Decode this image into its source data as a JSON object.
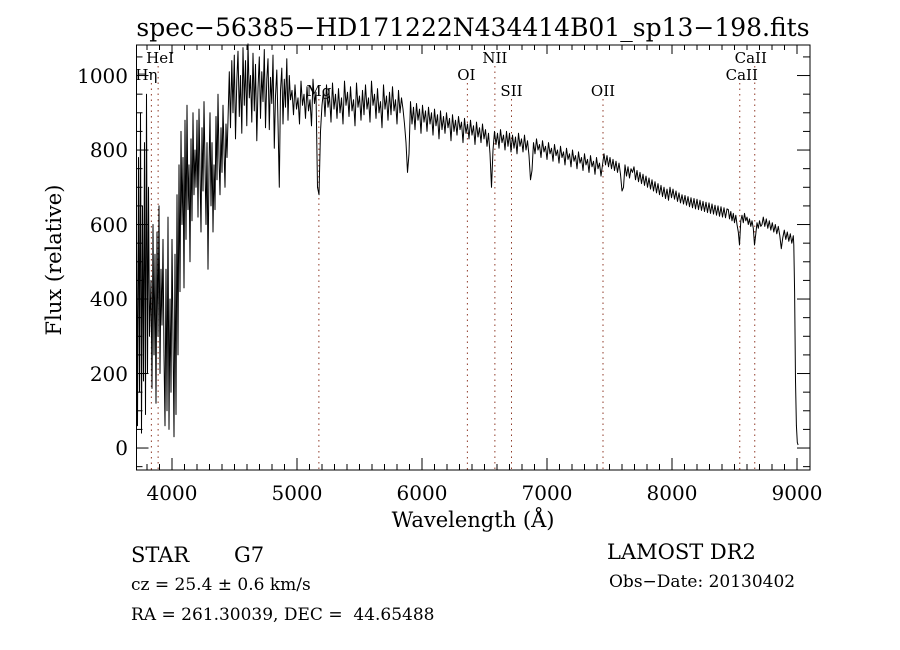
{
  "title": "spec−56385−HD171222N434414B01_sp13−198.fits",
  "footer": {
    "class_label": "STAR",
    "subclass": "G7",
    "cz_line": "cz = 25.4 ± 0.6 km/s",
    "radec_line": "RA = 261.30039, DEC =  44.65488",
    "survey": "LAMOST DR2",
    "obs_date": "Obs−Date: 20130402"
  },
  "chart_data": {
    "type": "line",
    "title": "spec−56385−HD171222N434414B01_sp13−198.fits",
    "xlabel": "Wavelength (Å)",
    "ylabel": "Flux (relative)",
    "xlim": [
      3716,
      9104
    ],
    "ylim": [
      -59,
      1082
    ],
    "xticks": [
      4000,
      5000,
      6000,
      7000,
      8000,
      9000
    ],
    "xminor_step": 100,
    "yticks": [
      0,
      200,
      400,
      600,
      800,
      1000
    ],
    "yminor_step": 50,
    "grid": false,
    "line_color": "#000000",
    "marker_line_color": "#8f3a28",
    "line_markers": [
      {
        "label": "HeI",
        "wavelength": 3889,
        "row": 1,
        "dx": 2
      },
      {
        "label": "Hη",
        "wavelength": 3835,
        "row": 2,
        "dx": -5
      },
      {
        "label": "Mg",
        "wavelength": 5175,
        "row": 3,
        "dx": 0
      },
      {
        "label": "OI",
        "wavelength": 6363,
        "row": 2,
        "dx": -1
      },
      {
        "label": "NII",
        "wavelength": 6583,
        "row": 1,
        "dx": 0
      },
      {
        "label": "SII",
        "wavelength": 6716,
        "row": 3,
        "dx": 0
      },
      {
        "label": "OII",
        "wavelength": 7448,
        "row": 3,
        "dx": 0
      },
      {
        "label": "CaII",
        "wavelength": 8542,
        "row": 2,
        "dx": 2
      },
      {
        "label": "CaII",
        "wavelength": 8662,
        "row": 1,
        "dx": -4
      }
    ],
    "spectrum_segments": [
      {
        "lambda_start": 3716,
        "lambda_step": 8,
        "flux": [
          560,
          60,
          780,
          150,
          900,
          40,
          650,
          180,
          820,
          90,
          950,
          200,
          700,
          300
        ]
      },
      {
        "lambda_start": 3832,
        "lambda_step": 8,
        "flux": [
          450,
          160,
          600,
          250,
          520,
          120,
          580,
          300,
          650,
          200,
          480,
          330,
          560
        ]
      },
      {
        "lambda_start": 3936,
        "lambda_step": 8,
        "flux": [
          250,
          60,
          480,
          100,
          620,
          50,
          400,
          150,
          560
        ]
      },
      {
        "lambda_start": 4008,
        "lambda_step": 8,
        "flux": [
          300,
          30,
          520,
          90,
          680,
          250,
          760,
          420,
          850,
          600,
          780,
          430,
          880,
          560,
          920,
          640,
          760,
          500,
          830,
          610,
          900,
          680,
          800
        ]
      },
      {
        "lambda_start": 4192,
        "lambda_step": 8,
        "flux": [
          700,
          880,
          620,
          910,
          740,
          580,
          860,
          690,
          930,
          760,
          600,
          820,
          480,
          750,
          900,
          650,
          820,
          580,
          760,
          640,
          890,
          720,
          950,
          780,
          680,
          860,
          740,
          920,
          800,
          700,
          870,
          780
        ]
      },
      {
        "lambda_start": 4448,
        "lambda_step": 10,
        "flux": [
          880,
          1010,
          860,
          1040,
          900,
          1055,
          830,
          985,
          1065,
          890,
          1000,
          845,
          1075,
          920,
          1040,
          865,
          1085,
          940,
          1000,
          875,
          1060,
          905,
          1030,
          825,
          965,
          1050,
          885,
          1010,
          930,
          1070,
          860,
          990,
          1045,
          855,
          995,
          925,
          1055,
          805,
          945,
          1015,
          875,
          700,
          960,
          1020,
          870,
          990,
          915,
          1045,
          880,
          1000,
          935
        ]
      },
      {
        "lambda_start": 4960,
        "lambda_step": 12,
        "flux": [
          960,
          895,
          975,
          910,
          940,
          870,
          985,
          920,
          950,
          885,
          970,
          905,
          935,
          865,
          990,
          925,
          955,
          700,
          680,
          850,
          920,
          960,
          890,
          975,
          915,
          945,
          875,
          980,
          910,
          950,
          885,
          965,
          900,
          940,
          870,
          985,
          920,
          955,
          890,
          970,
          905,
          935,
          865,
          980,
          915,
          945,
          880,
          960,
          895,
          975,
          910,
          940,
          875,
          985,
          920,
          950,
          885,
          965,
          900,
          930,
          860,
          975,
          910,
          945,
          880,
          955,
          895,
          970,
          905,
          935,
          870,
          960,
          900,
          940,
          910,
          870,
          820,
          740,
          790
        ]
      },
      {
        "lambda_start": 5908,
        "lambda_step": 12,
        "flux": [
          930,
          870,
          915,
          855,
          925,
          880,
          910,
          845,
          920,
          875,
          905,
          850,
          915,
          870,
          900,
          840,
          910,
          865,
          895,
          830,
          905,
          855,
          890,
          845,
          900,
          860,
          885,
          825,
          895,
          850,
          880,
          840,
          890,
          855,
          875,
          820,
          885,
          845,
          870,
          830,
          880,
          840,
          865,
          815,
          875,
          835,
          860,
          820,
          870,
          830,
          855,
          810,
          845,
          790,
          700
        ]
      },
      {
        "lambda_start": 6568,
        "lambda_step": 12,
        "flux": [
          800,
          850,
          815,
          845,
          805,
          855,
          820,
          840,
          800,
          850,
          810,
          845,
          795,
          840,
          805,
          835,
          790,
          845,
          810,
          830,
          795,
          840,
          800,
          825,
          785,
          720,
          745,
          820,
          790,
          830,
          800,
          815,
          780,
          825,
          795,
          810,
          775,
          820,
          790,
          805,
          770,
          815,
          785,
          800,
          765,
          810,
          780,
          795,
          760,
          805,
          775,
          790,
          755,
          800,
          770,
          785,
          750,
          795,
          765,
          780,
          745,
          790,
          760,
          775,
          740,
          785,
          755,
          770,
          735,
          780,
          750,
          765,
          730,
          760
        ]
      },
      {
        "lambda_start": 7456,
        "lambda_step": 12,
        "flux": [
          790,
          760,
          785,
          755,
          780,
          750,
          775,
          745,
          770,
          740,
          765,
          735,
          690,
          700,
          760,
          730,
          755,
          725,
          750,
          740,
          755,
          720,
          745,
          715,
          740,
          710,
          735,
          705,
          730,
          700,
          725,
          695,
          720,
          690,
          715,
          685,
          710,
          680,
          705,
          675,
          700,
          670,
          695,
          665,
          700,
          672,
          695,
          668,
          690,
          662,
          685,
          658,
          680,
          655,
          678,
          652,
          675,
          648,
          672,
          645,
          670,
          642,
          668,
          640,
          665,
          638,
          662,
          635,
          660,
          632,
          658,
          630,
          655,
          628,
          652,
          625,
          650,
          622,
          648,
          620,
          645,
          618,
          642
        ]
      },
      {
        "lambda_start": 8450,
        "lambda_step": 10,
        "flux": [
          640,
          615,
          635,
          610,
          630,
          605,
          625,
          600,
          580,
          545,
          610,
          625,
          605,
          630,
          610,
          620,
          600,
          615,
          595,
          610,
          590,
          545,
          575,
          605,
          590,
          610,
          595,
          600
        ]
      },
      {
        "lambda_start": 8730,
        "lambda_step": 12,
        "flux": [
          620,
          595,
          615,
          590,
          610,
          585,
          605,
          580,
          600,
          575,
          595,
          570,
          535,
          565,
          585,
          560,
          580,
          555,
          575,
          550,
          570
        ]
      },
      {
        "lambda_start": 8974,
        "lambda_step": 7,
        "flux": [
          545,
          420,
          180,
          60,
          15,
          8
        ]
      }
    ]
  }
}
